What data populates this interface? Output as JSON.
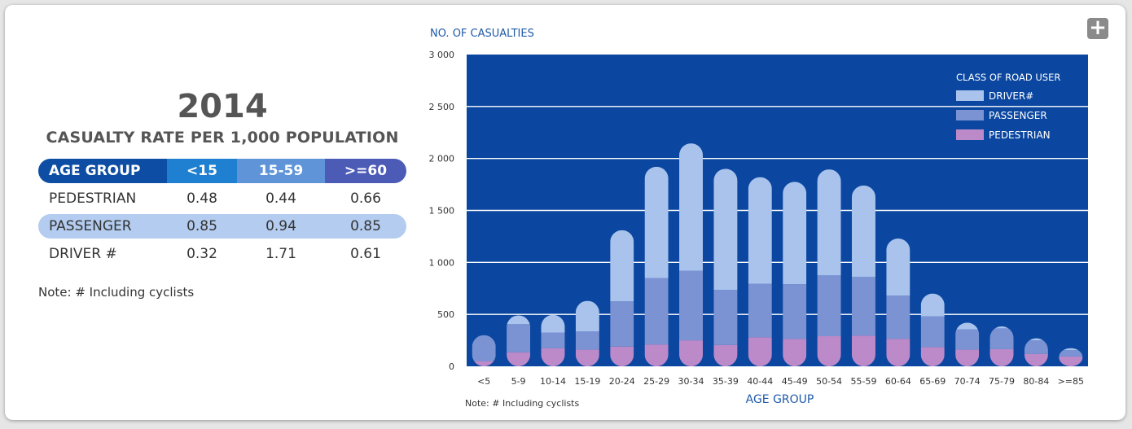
{
  "panel": {
    "year": "2014",
    "subtitle": "CASUALTY RATE PER 1,000 POPULATION",
    "table": {
      "headers": [
        "AGE GROUP",
        "<15",
        "15-59",
        ">=60"
      ],
      "rows": [
        {
          "label": "PEDESTRIAN",
          "values": [
            "0.48",
            "0.44",
            "0.66"
          ]
        },
        {
          "label": "PASSENGER",
          "values": [
            "0.85",
            "0.94",
            "0.85"
          ]
        },
        {
          "label": "DRIVER #",
          "values": [
            "0.32",
            "1.71",
            "0.61"
          ]
        }
      ]
    },
    "note": "Note:  #  Including cyclists"
  },
  "expand_icon": "plus-icon",
  "colors": {
    "plot_bg": "#0b47a0",
    "driver": "#a9c3ec",
    "passenger": "#7b93d3",
    "pedestrian": "#bc8ac9",
    "axis_text": "#1f5aa8"
  },
  "chart_data": {
    "type": "bar",
    "stacked": true,
    "ylabel": "NO. OF CASUALTIES",
    "xlabel": "AGE GROUP",
    "ylim": [
      0,
      3000
    ],
    "yticks": [
      0,
      500,
      1000,
      1500,
      2000,
      2500,
      3000
    ],
    "ytick_labels": [
      "0",
      "500",
      "1 000",
      "1 500",
      "2 000",
      "2 500",
      "3 000"
    ],
    "grid": true,
    "legend": {
      "title": "CLASS OF ROAD USER",
      "position": "top-right",
      "entries": [
        "DRIVER#",
        "PASSENGER",
        "PEDESTRIAN"
      ]
    },
    "note": "Note:  # Including cyclists",
    "categories": [
      "<5",
      "5-9",
      "10-14",
      "15-19",
      "20-24",
      "25-29",
      "30-34",
      "35-39",
      "40-44",
      "45-49",
      "50-54",
      "55-59",
      "60-64",
      "65-69",
      "70-74",
      "75-79",
      "80-84",
      ">=85"
    ],
    "series": [
      {
        "name": "PEDESTRIAN",
        "values": [
          50,
          135,
          175,
          160,
          190,
          210,
          250,
          205,
          280,
          265,
          290,
          295,
          265,
          185,
          160,
          165,
          120,
          95
        ]
      },
      {
        "name": "PASSENGER",
        "values": [
          250,
          270,
          150,
          175,
          435,
          640,
          670,
          530,
          515,
          525,
          585,
          565,
          415,
          295,
          195,
          200,
          130,
          60
        ]
      },
      {
        "name": "DRIVER#",
        "values": [
          0,
          85,
          170,
          295,
          685,
          1070,
          1225,
          1165,
          1025,
          985,
          1020,
          880,
          550,
          220,
          65,
          20,
          20,
          20
        ]
      }
    ]
  }
}
